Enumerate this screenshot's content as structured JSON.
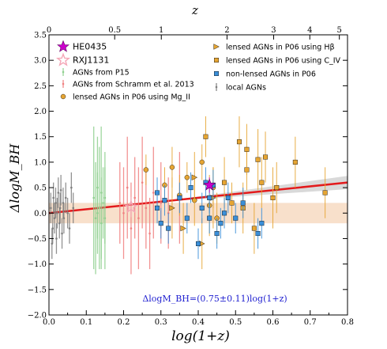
{
  "chart_data": {
    "type": "scatter",
    "xlabel": "log(1+z)",
    "ylabel": "ΔlogM_BH",
    "top_xlabel": "z",
    "xlim": [
      0.0,
      0.8
    ],
    "ylim": [
      -2.0,
      3.5
    ],
    "x_ticks": [
      "0.0",
      "0.1",
      "0.2",
      "0.3",
      "0.4",
      "0.5",
      "0.6",
      "0.7",
      "0.8"
    ],
    "y_ticks": [
      "−2.0",
      "−1.5",
      "−1.0",
      "−0.5",
      "0.0",
      "0.5",
      "1.0",
      "1.5",
      "2.0",
      "2.5",
      "3.0",
      "3.5"
    ],
    "top_ticks": [
      {
        "z": 0,
        "label": "0"
      },
      {
        "z": 0.5,
        "label": "0.5"
      },
      {
        "z": 1,
        "label": "1"
      },
      {
        "z": 2,
        "label": "2"
      },
      {
        "z": 3,
        "label": "3"
      },
      {
        "z": 4,
        "label": "4"
      },
      {
        "z": 5,
        "label": "5"
      }
    ],
    "fit": {
      "slope": 0.75,
      "intercept": 0.0,
      "color": "#e31a1c"
    },
    "scatter_band": {
      "low": -0.2,
      "high": 0.2,
      "color": "#f5d3b5"
    },
    "annotation": "ΔlogM_BH=(0.75±0.11)log(1+z)",
    "legend_left": [
      {
        "label": "HE0435",
        "marker": "star",
        "color": "#cc00cc"
      },
      {
        "label": "RXJ1131",
        "marker": "star-open",
        "color": "#f4a6b6"
      },
      {
        "label": "AGNs from P15",
        "marker": "bar",
        "color": "#8fd08f"
      },
      {
        "label": "AGNs from Schramm et al. 2013",
        "marker": "bar",
        "color": "#f08080"
      },
      {
        "label": "lensed AGNs in P06 using Mg_II",
        "marker": "circle",
        "color": "#e6a532"
      }
    ],
    "legend_right": [
      {
        "label": "lensed AGNs in P06 using Hβ",
        "marker": "triangle",
        "color": "#e6a532"
      },
      {
        "label": "lensed AGNs in P06 using C_IV",
        "marker": "square",
        "color": "#e6a532"
      },
      {
        "label": "non-lensed AGNs in P06",
        "marker": "square",
        "color": "#3a8fd9"
      },
      {
        "label": "local AGNs",
        "marker": "bar",
        "color": "#7f7f7f"
      }
    ],
    "series": [
      {
        "name": "HE0435",
        "marker": "star",
        "color": "#cc00cc",
        "points": [
          [
            0.43,
            0.55,
            0.15
          ]
        ]
      },
      {
        "name": "RXJ1131",
        "marker": "star-open",
        "color": "#f4a6b6",
        "points": [
          [
            0.22,
            0.12,
            0.2
          ]
        ]
      },
      {
        "name": "AGNs from P15",
        "marker": "bar",
        "color": "#8fd08f",
        "points": [
          [
            0.12,
            0.3,
            1.4
          ],
          [
            0.125,
            -0.1,
            1.1
          ],
          [
            0.13,
            0.5,
            1.0
          ],
          [
            0.13,
            0.0,
            0.8
          ],
          [
            0.135,
            0.1,
            1.2
          ],
          [
            0.14,
            -0.2,
            0.9
          ],
          [
            0.14,
            0.4,
            1.3
          ],
          [
            0.145,
            0.2,
            0.7
          ],
          [
            0.15,
            -0.1,
            1.0
          ],
          [
            0.15,
            0.3,
            0.9
          ]
        ]
      },
      {
        "name": "AGNs from Schramm et al. 2013",
        "marker": "bar",
        "color": "#f08080",
        "points": [
          [
            0.19,
            0.2,
            0.8
          ],
          [
            0.2,
            0.0,
            0.9
          ],
          [
            0.21,
            0.5,
            1.0
          ],
          [
            0.22,
            -0.3,
            0.9
          ],
          [
            0.23,
            0.3,
            0.8
          ],
          [
            0.24,
            -0.1,
            1.0
          ],
          [
            0.25,
            0.6,
            0.9
          ],
          [
            0.26,
            0.1,
            0.8
          ],
          [
            0.27,
            -0.4,
            0.7
          ],
          [
            0.28,
            0.4,
            0.9
          ],
          [
            0.3,
            0.2,
            0.8
          ],
          [
            0.32,
            0.0,
            0.7
          ],
          [
            0.35,
            0.3,
            0.9
          ]
        ]
      },
      {
        "name": "lensed AGNs in P06 using Mg_II",
        "marker": "circle",
        "color": "#e6a532",
        "points": [
          [
            0.26,
            0.85,
            0.3
          ],
          [
            0.31,
            0.55,
            0.35
          ],
          [
            0.33,
            0.9,
            0.4
          ],
          [
            0.35,
            0.35,
            0.4
          ],
          [
            0.37,
            0.7,
            0.3
          ],
          [
            0.39,
            0.25,
            0.5
          ],
          [
            0.41,
            1.0,
            0.35
          ],
          [
            0.44,
            0.5,
            0.4
          ],
          [
            0.45,
            -0.1,
            0.5
          ],
          [
            0.43,
            0.15,
            0.6
          ]
        ]
      },
      {
        "name": "lensed AGNs in P06 using Hβ",
        "marker": "triangle",
        "color": "#e6a532",
        "points": [
          [
            0.33,
            0.1,
            0.6
          ],
          [
            0.36,
            -0.3,
            0.5
          ],
          [
            0.39,
            0.7,
            0.5
          ],
          [
            0.41,
            -0.6,
            0.5
          ],
          [
            0.44,
            0.3,
            0.6
          ]
        ]
      },
      {
        "name": "lensed AGNs in P06 using C_IV",
        "marker": "square",
        "color": "#e6a532",
        "points": [
          [
            0.42,
            1.5,
            0.4
          ],
          [
            0.47,
            0.6,
            0.5
          ],
          [
            0.49,
            0.2,
            0.4
          ],
          [
            0.51,
            1.4,
            0.5
          ],
          [
            0.52,
            0.1,
            0.5
          ],
          [
            0.53,
            0.85,
            0.4
          ],
          [
            0.55,
            -0.3,
            0.5
          ],
          [
            0.56,
            1.05,
            0.6
          ],
          [
            0.57,
            0.6,
            0.5
          ],
          [
            0.58,
            1.1,
            0.5
          ],
          [
            0.6,
            0.3,
            0.6
          ],
          [
            0.61,
            0.5,
            0.5
          ],
          [
            0.66,
            1.0,
            0.5
          ],
          [
            0.74,
            0.4,
            0.5
          ],
          [
            0.53,
            1.25,
            0.5
          ]
        ]
      },
      {
        "name": "non-lensed AGNs in P06",
        "marker": "square",
        "color": "#3a8fd9",
        "points": [
          [
            0.29,
            0.4,
            0.3
          ],
          [
            0.29,
            0.1,
            0.3
          ],
          [
            0.3,
            -0.2,
            0.3
          ],
          [
            0.31,
            0.25,
            0.3
          ],
          [
            0.32,
            -0.3,
            0.3
          ],
          [
            0.35,
            0.3,
            0.3
          ],
          [
            0.37,
            -0.1,
            0.3
          ],
          [
            0.38,
            0.5,
            0.3
          ],
          [
            0.4,
            -0.6,
            0.3
          ],
          [
            0.41,
            0.1,
            0.3
          ],
          [
            0.42,
            0.6,
            0.3
          ],
          [
            0.43,
            0.3,
            0.3
          ],
          [
            0.43,
            -0.1,
            0.3
          ],
          [
            0.44,
            0.55,
            0.3
          ],
          [
            0.45,
            -0.4,
            0.3
          ],
          [
            0.46,
            -0.2,
            0.3
          ],
          [
            0.47,
            0.0,
            0.3
          ],
          [
            0.48,
            0.3,
            0.3
          ],
          [
            0.5,
            -0.1,
            0.3
          ],
          [
            0.52,
            0.2,
            0.3
          ],
          [
            0.56,
            -0.4,
            0.3
          ],
          [
            0.57,
            -0.2,
            0.3
          ]
        ]
      },
      {
        "name": "local AGNs",
        "marker": "bar",
        "color": "#7f7f7f",
        "points": [
          [
            0.005,
            0.1,
            0.3
          ],
          [
            0.01,
            -0.3,
            0.3
          ],
          [
            0.012,
            0.3,
            0.3
          ],
          [
            0.015,
            -0.1,
            0.3
          ],
          [
            0.018,
            0.2,
            0.3
          ],
          [
            0.02,
            -0.5,
            0.3
          ],
          [
            0.022,
            0.0,
            0.3
          ],
          [
            0.025,
            0.4,
            0.3
          ],
          [
            0.028,
            -0.2,
            0.3
          ],
          [
            0.03,
            0.1,
            0.3
          ],
          [
            0.035,
            -0.4,
            0.3
          ],
          [
            0.038,
            0.2,
            0.3
          ],
          [
            0.04,
            -0.1,
            0.3
          ],
          [
            0.045,
            0.3,
            0.3
          ],
          [
            0.05,
            0.0,
            0.3
          ],
          [
            0.055,
            -0.3,
            0.3
          ],
          [
            0.06,
            0.5,
            0.3
          ],
          [
            0.065,
            0.1,
            0.3
          ],
          [
            0.008,
            -0.6,
            0.3
          ],
          [
            0.032,
            0.45,
            0.3
          ]
        ]
      }
    ]
  }
}
